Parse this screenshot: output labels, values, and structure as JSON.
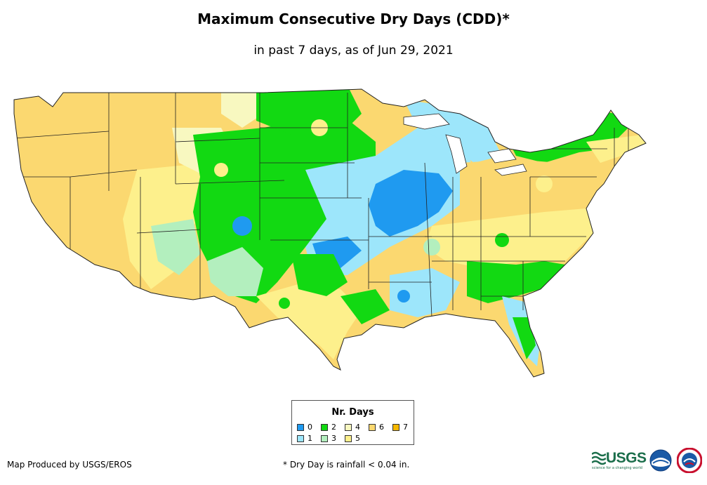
{
  "title": "Maximum Consecutive Dry Days (CDD)*",
  "subtitle": "in past 7 days, as of Jun 29, 2021",
  "legend": {
    "title": "Nr. Days",
    "items": [
      {
        "label": "0",
        "color": "#1f9af0"
      },
      {
        "label": "1",
        "color": "#9de6fb"
      },
      {
        "label": "2",
        "color": "#12d912"
      },
      {
        "label": "3",
        "color": "#b3efbe"
      },
      {
        "label": "4",
        "color": "#f8f8c0"
      },
      {
        "label": "5",
        "color": "#fdf08c"
      },
      {
        "label": "6",
        "color": "#fbd870"
      },
      {
        "label": "7",
        "color": "#f6b800"
      }
    ]
  },
  "footer": {
    "producer": "Map Produced by USGS/EROS",
    "footnote": "* Dry Day is rainfall < 0.04 in."
  },
  "logos": {
    "usgs": "USGS",
    "usgs_tagline": "science for a changing world"
  }
}
